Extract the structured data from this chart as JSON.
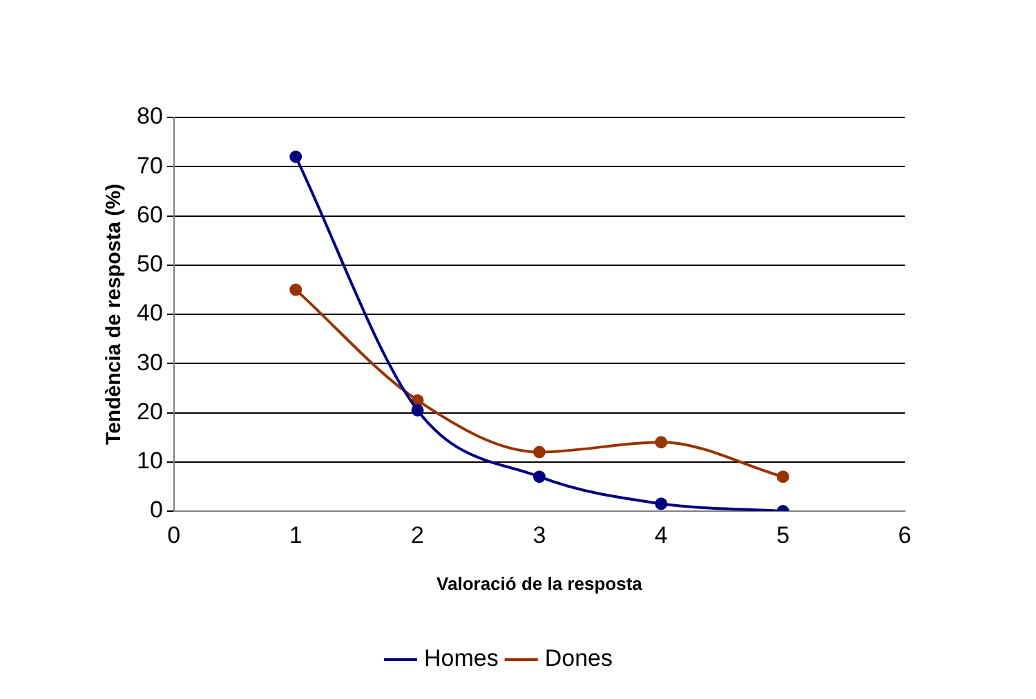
{
  "chart_data": {
    "type": "line",
    "xlabel": "Valoració de la resposta",
    "ylabel": "Tendència de resposta (%)",
    "x": [
      1,
      2,
      3,
      4,
      5
    ],
    "series": [
      {
        "name": "Homes",
        "color": "#000080",
        "values": [
          72,
          20.5,
          7,
          1.5,
          0
        ]
      },
      {
        "name": "Dones",
        "color": "#993300",
        "values": [
          45,
          22.5,
          12,
          14,
          7
        ]
      }
    ],
    "xlim": [
      0,
      6
    ],
    "xticks": [
      0,
      1,
      2,
      3,
      4,
      5,
      6
    ],
    "ylim": [
      0,
      80
    ],
    "yticks": [
      0,
      10,
      20,
      30,
      40,
      50,
      60,
      70,
      80
    ],
    "grid": "y",
    "legend": "bottom",
    "marker": "circle",
    "line_style": "solid"
  }
}
